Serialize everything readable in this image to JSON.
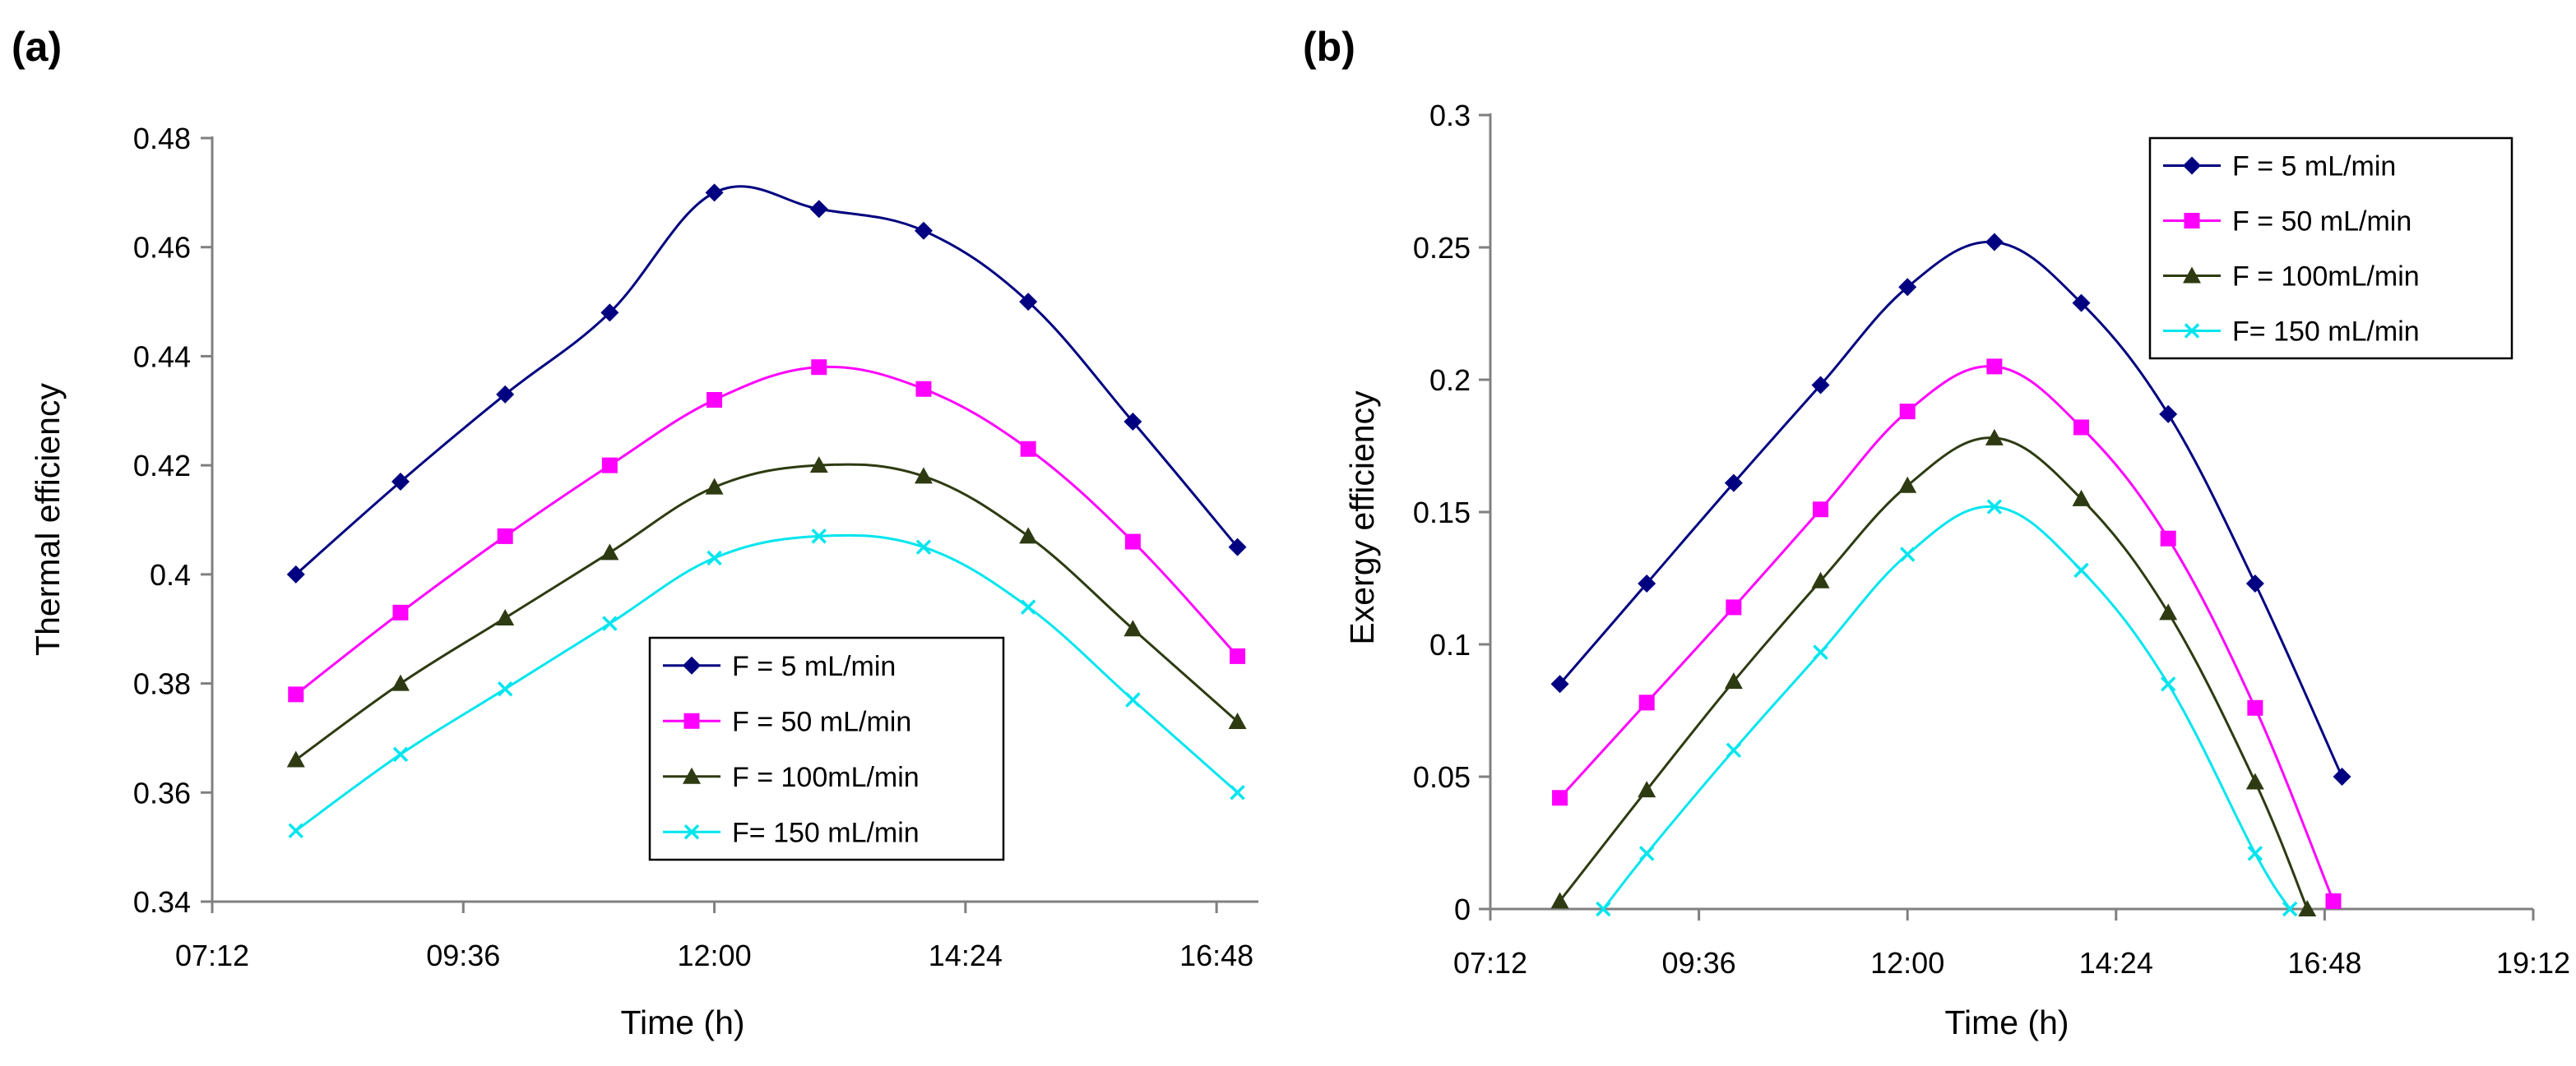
{
  "chart_data": [
    {
      "panel_label": "(a)",
      "type": "line",
      "xlabel": "Time (h)",
      "ylabel": "Thermal efficiency",
      "xaxis_unit": "hours since midnight",
      "xlim": [
        7.2,
        17.2
      ],
      "ylim": [
        0.34,
        0.48
      ],
      "xticks": [
        7.2,
        9.6,
        12.0,
        14.4,
        16.8
      ],
      "xtick_labels": [
        "07:12",
        "09:36",
        "12:00",
        "14:24",
        "16:48"
      ],
      "yticks": [
        0.34,
        0.36,
        0.38,
        0.4,
        0.42,
        0.44,
        0.46,
        0.48
      ],
      "ytick_labels": [
        "0.34",
        "0.36",
        "0.38",
        "0.4",
        "0.42",
        "0.44",
        "0.46",
        "0.48"
      ],
      "grid": false,
      "legend_position": "bottom-center",
      "series": [
        {
          "name": "F = 5 mL/min",
          "color": "#000080",
          "marker": "diamond",
          "points": [
            [
              8,
              0.4
            ],
            [
              9,
              0.417
            ],
            [
              10,
              0.433
            ],
            [
              11,
              0.448
            ],
            [
              12,
              0.47
            ],
            [
              13,
              0.467
            ],
            [
              14,
              0.463
            ],
            [
              15,
              0.45
            ],
            [
              16,
              0.428
            ],
            [
              17,
              0.405
            ]
          ]
        },
        {
          "name": "F = 50 mL/min",
          "color": "#FF00FF",
          "marker": "square",
          "points": [
            [
              8,
              0.378
            ],
            [
              9,
              0.393
            ],
            [
              10,
              0.407
            ],
            [
              11,
              0.42
            ],
            [
              12,
              0.432
            ],
            [
              13,
              0.438
            ],
            [
              14,
              0.434
            ],
            [
              15,
              0.423
            ],
            [
              16,
              0.406
            ],
            [
              17,
              0.385
            ]
          ]
        },
        {
          "name": "F = 100mL/min",
          "color": "#2E3B12",
          "marker": "triangle",
          "points": [
            [
              8,
              0.366
            ],
            [
              9,
              0.38
            ],
            [
              10,
              0.392
            ],
            [
              11,
              0.404
            ],
            [
              12,
              0.416
            ],
            [
              13,
              0.42
            ],
            [
              14,
              0.418
            ],
            [
              15,
              0.407
            ],
            [
              16,
              0.39
            ],
            [
              17,
              0.373
            ]
          ]
        },
        {
          "name": "F= 150 mL/min",
          "color": "#00E5EE",
          "marker": "x",
          "points": [
            [
              8,
              0.353
            ],
            [
              9,
              0.367
            ],
            [
              10,
              0.379
            ],
            [
              11,
              0.391
            ],
            [
              12,
              0.403
            ],
            [
              13,
              0.407
            ],
            [
              14,
              0.405
            ],
            [
              15,
              0.394
            ],
            [
              16,
              0.377
            ],
            [
              17,
              0.36
            ]
          ]
        }
      ]
    },
    {
      "panel_label": "(b)",
      "type": "line",
      "xlabel": "Time (h)",
      "ylabel": "Exergy efficiency",
      "xaxis_unit": "hours since midnight",
      "xlim": [
        7.2,
        19.2
      ],
      "ylim": [
        0,
        0.3
      ],
      "xticks": [
        7.2,
        9.6,
        12.0,
        14.4,
        16.8,
        19.2
      ],
      "xtick_labels": [
        "07:12",
        "09:36",
        "12:00",
        "14:24",
        "16:48",
        "19:12"
      ],
      "yticks": [
        0,
        0.05,
        0.1,
        0.15,
        0.2,
        0.25,
        0.3
      ],
      "ytick_labels": [
        "0",
        "0.05",
        "0.1",
        "0.15",
        "0.2",
        "0.25",
        "0.3"
      ],
      "grid": false,
      "legend_position": "top-right",
      "series": [
        {
          "name": "F = 5 mL/min",
          "color": "#000080",
          "marker": "diamond",
          "points": [
            [
              8,
              0.085
            ],
            [
              9,
              0.123
            ],
            [
              10,
              0.161
            ],
            [
              11,
              0.198
            ],
            [
              12,
              0.235
            ],
            [
              13,
              0.252
            ],
            [
              14,
              0.229
            ],
            [
              15,
              0.187
            ],
            [
              16,
              0.123
            ],
            [
              17,
              0.05
            ]
          ]
        },
        {
          "name": "F = 50 mL/min",
          "color": "#FF00FF",
          "marker": "square",
          "points": [
            [
              8,
              0.042
            ],
            [
              9,
              0.078
            ],
            [
              10,
              0.114
            ],
            [
              11,
              0.151
            ],
            [
              12,
              0.188
            ],
            [
              13,
              0.205
            ],
            [
              14,
              0.182
            ],
            [
              15,
              0.14
            ],
            [
              16,
              0.076
            ],
            [
              16.9,
              0.003
            ]
          ]
        },
        {
          "name": "F = 100mL/min",
          "color": "#2E3B12",
          "marker": "triangle",
          "points": [
            [
              8,
              0.003
            ],
            [
              9,
              0.045
            ],
            [
              10,
              0.086
            ],
            [
              11,
              0.124
            ],
            [
              12,
              0.16
            ],
            [
              13,
              0.178
            ],
            [
              14,
              0.155
            ],
            [
              15,
              0.112
            ],
            [
              16,
              0.048
            ],
            [
              16.6,
              0.0
            ]
          ]
        },
        {
          "name": "F= 150 mL/min",
          "color": "#00E5EE",
          "marker": "x",
          "points": [
            [
              8.5,
              0.0
            ],
            [
              9,
              0.021
            ],
            [
              10,
              0.06
            ],
            [
              11,
              0.097
            ],
            [
              12,
              0.134
            ],
            [
              13,
              0.152
            ],
            [
              14,
              0.128
            ],
            [
              15,
              0.085
            ],
            [
              16,
              0.021
            ],
            [
              16.4,
              0.0
            ]
          ]
        }
      ]
    }
  ]
}
